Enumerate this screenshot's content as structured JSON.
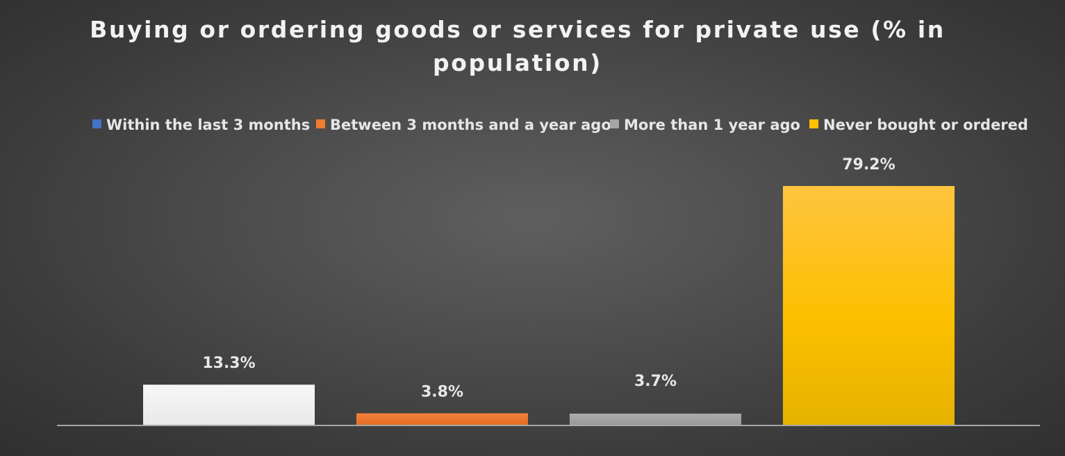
{
  "chart_data": {
    "type": "bar",
    "title_lines": [
      "Buying or ordering goods or services for private use (% in",
      "population)"
    ],
    "categories": [
      "Within the last 3 months",
      "Between 3 months and a year ago",
      "More than 1 year ago",
      "Never bought or ordered"
    ],
    "values": [
      13.3,
      3.8,
      3.7,
      79.2
    ],
    "value_labels": [
      "13.3%",
      "3.8%",
      "3.7%",
      "79.2%"
    ],
    "bar_colors": [
      "#f2f2f2",
      "#ed7d31",
      "#a5a5a5",
      "#ffc000"
    ],
    "legend": {
      "position": "top",
      "entries": [
        {
          "label": "Within the last 3 months",
          "color": "#4472c4"
        },
        {
          "label": "Between 3 months and a year ago",
          "color": "#ed7d31"
        },
        {
          "label": "More than 1 year ago",
          "color": "#a5a5a5"
        },
        {
          "label": "Never bought or ordered",
          "color": "#ffc000"
        }
      ]
    },
    "ylim": [
      0,
      100
    ],
    "grid": false
  }
}
